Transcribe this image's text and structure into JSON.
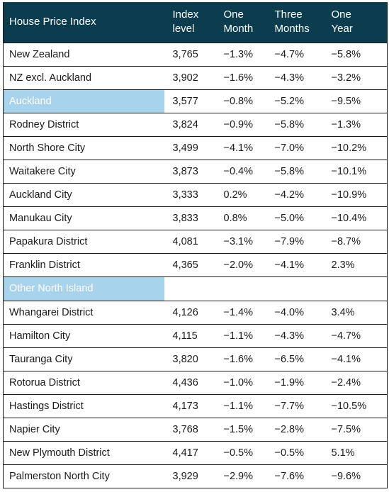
{
  "table": {
    "headers": [
      {
        "line1": "House Price Index",
        "line2": ""
      },
      {
        "line1": "Index",
        "line2": "level"
      },
      {
        "line1": "One",
        "line2": "Month"
      },
      {
        "line1": "Three",
        "line2": "Months"
      },
      {
        "line1": "One",
        "line2": "Year"
      }
    ],
    "rows": [
      {
        "name": "New Zealand",
        "index": "3,765",
        "one_month": "−1.3%",
        "three_months": "−4.7%",
        "one_year": "−5.8%",
        "highlight": false
      },
      {
        "name": "NZ excl. Auckland",
        "index": "3,902",
        "one_month": "−1.6%",
        "three_months": "−4.3%",
        "one_year": "−3.2%",
        "highlight": false
      },
      {
        "name": "Auckland",
        "index": "3,577",
        "one_month": "−0.8%",
        "three_months": "−5.2%",
        "one_year": "−9.5%",
        "highlight": true
      },
      {
        "name": "Rodney District",
        "index": "3,824",
        "one_month": "−0.9%",
        "three_months": "−5.8%",
        "one_year": "−1.3%",
        "highlight": false
      },
      {
        "name": "North Shore City",
        "index": "3,499",
        "one_month": "−4.1%",
        "three_months": "−7.0%",
        "one_year": "−10.2%",
        "highlight": false
      },
      {
        "name": "Waitakere City",
        "index": "3,873",
        "one_month": "−0.4%",
        "three_months": "−5.8%",
        "one_year": "−10.1%",
        "highlight": false
      },
      {
        "name": "Auckland City",
        "index": "3,333",
        "one_month": "0.2%",
        "three_months": "−4.2%",
        "one_year": "−10.9%",
        "highlight": false
      },
      {
        "name": "Manukau City",
        "index": "3,833",
        "one_month": "0.8%",
        "three_months": "−5.0%",
        "one_year": "−10.4%",
        "highlight": false
      },
      {
        "name": "Papakura District",
        "index": "4,081",
        "one_month": "−3.1%",
        "three_months": "−7.9%",
        "one_year": "−8.7%",
        "highlight": false
      },
      {
        "name": "Franklin District",
        "index": "4,365",
        "one_month": "−2.0%",
        "three_months": "−4.1%",
        "one_year": "2.3%",
        "highlight": false
      },
      {
        "name": "Other North Island",
        "index": "",
        "one_month": "",
        "three_months": "",
        "one_year": "",
        "highlight": true
      },
      {
        "name": "Whangarei District",
        "index": "4,126",
        "one_month": "−1.4%",
        "three_months": "−4.0%",
        "one_year": "3.4%",
        "highlight": false
      },
      {
        "name": "Hamilton City",
        "index": "4,115",
        "one_month": "−1.1%",
        "three_months": "−4.3%",
        "one_year": "−4.7%",
        "highlight": false
      },
      {
        "name": "Tauranga City",
        "index": "3,820",
        "one_month": "−1.6%",
        "three_months": "−6.5%",
        "one_year": "−4.1%",
        "highlight": false
      },
      {
        "name": "Rotorua District",
        "index": "4,436",
        "one_month": "−1.0%",
        "three_months": "−1.9%",
        "one_year": "−2.4%",
        "highlight": false
      },
      {
        "name": "Hastings District",
        "index": "4,173",
        "one_month": "−1.1%",
        "three_months": "−7.7%",
        "one_year": "−10.5%",
        "highlight": false
      },
      {
        "name": "Napier City",
        "index": "3,768",
        "one_month": "−1.5%",
        "three_months": "−2.8%",
        "one_year": "−7.5%",
        "highlight": false
      },
      {
        "name": "New Plymouth District",
        "index": "4,417",
        "one_month": "−0.5%",
        "three_months": "−0.5%",
        "one_year": "5.1%",
        "highlight": false
      },
      {
        "name": "Palmerston North City",
        "index": "3,929",
        "one_month": "−2.9%",
        "three_months": "−7.6%",
        "one_year": "−9.6%",
        "highlight": false
      }
    ]
  },
  "colors": {
    "header_bg": "#0b3d4f",
    "highlight_bg": "#a8d3ec",
    "text": "#1a1a1a"
  }
}
